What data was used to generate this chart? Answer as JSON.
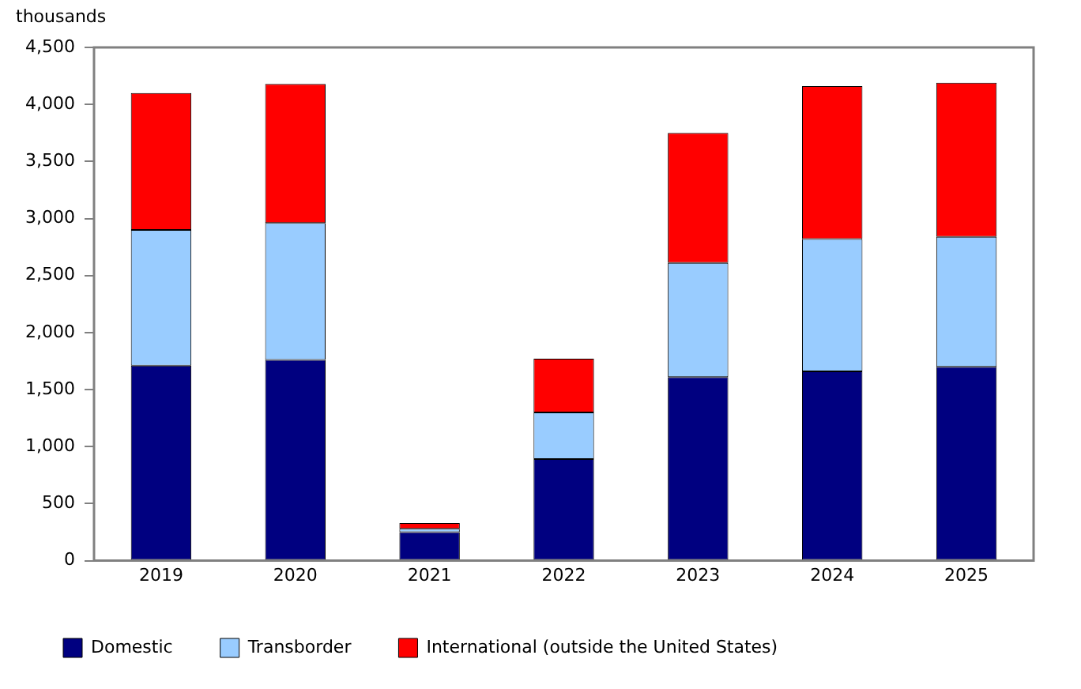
{
  "chart_data": {
    "type": "bar",
    "stacked": true,
    "ylabel": "thousands",
    "categories": [
      "2019",
      "2020",
      "2021",
      "2022",
      "2023",
      "2024",
      "2025"
    ],
    "series": [
      {
        "name": "Domestic",
        "color": "#000080",
        "values": [
          1710,
          1760,
          250,
          890,
          1610,
          1660,
          1700
        ]
      },
      {
        "name": "Transborder",
        "color": "#99ccff",
        "values": [
          1190,
          1200,
          30,
          410,
          1000,
          1160,
          1140
        ]
      },
      {
        "name": "International (outside the United States)",
        "color": "#ff0000",
        "values": [
          1200,
          1220,
          50,
          470,
          1140,
          1340,
          1350
        ]
      }
    ],
    "ylim": [
      0,
      4500
    ],
    "yticks": [
      0,
      500,
      {
        "value": 1000,
        "label": "1,000"
      },
      {
        "value": 1500,
        "label": "1,500"
      },
      {
        "value": 2000,
        "label": "2,000"
      },
      {
        "value": 2500,
        "label": "2,500"
      },
      {
        "value": 3000,
        "label": "3,000"
      },
      {
        "value": 3500,
        "label": "3,500"
      },
      {
        "value": 4000,
        "label": "4,000"
      },
      {
        "value": 4500,
        "label": "4,500"
      }
    ],
    "grid": false,
    "legend": "bottom"
  }
}
